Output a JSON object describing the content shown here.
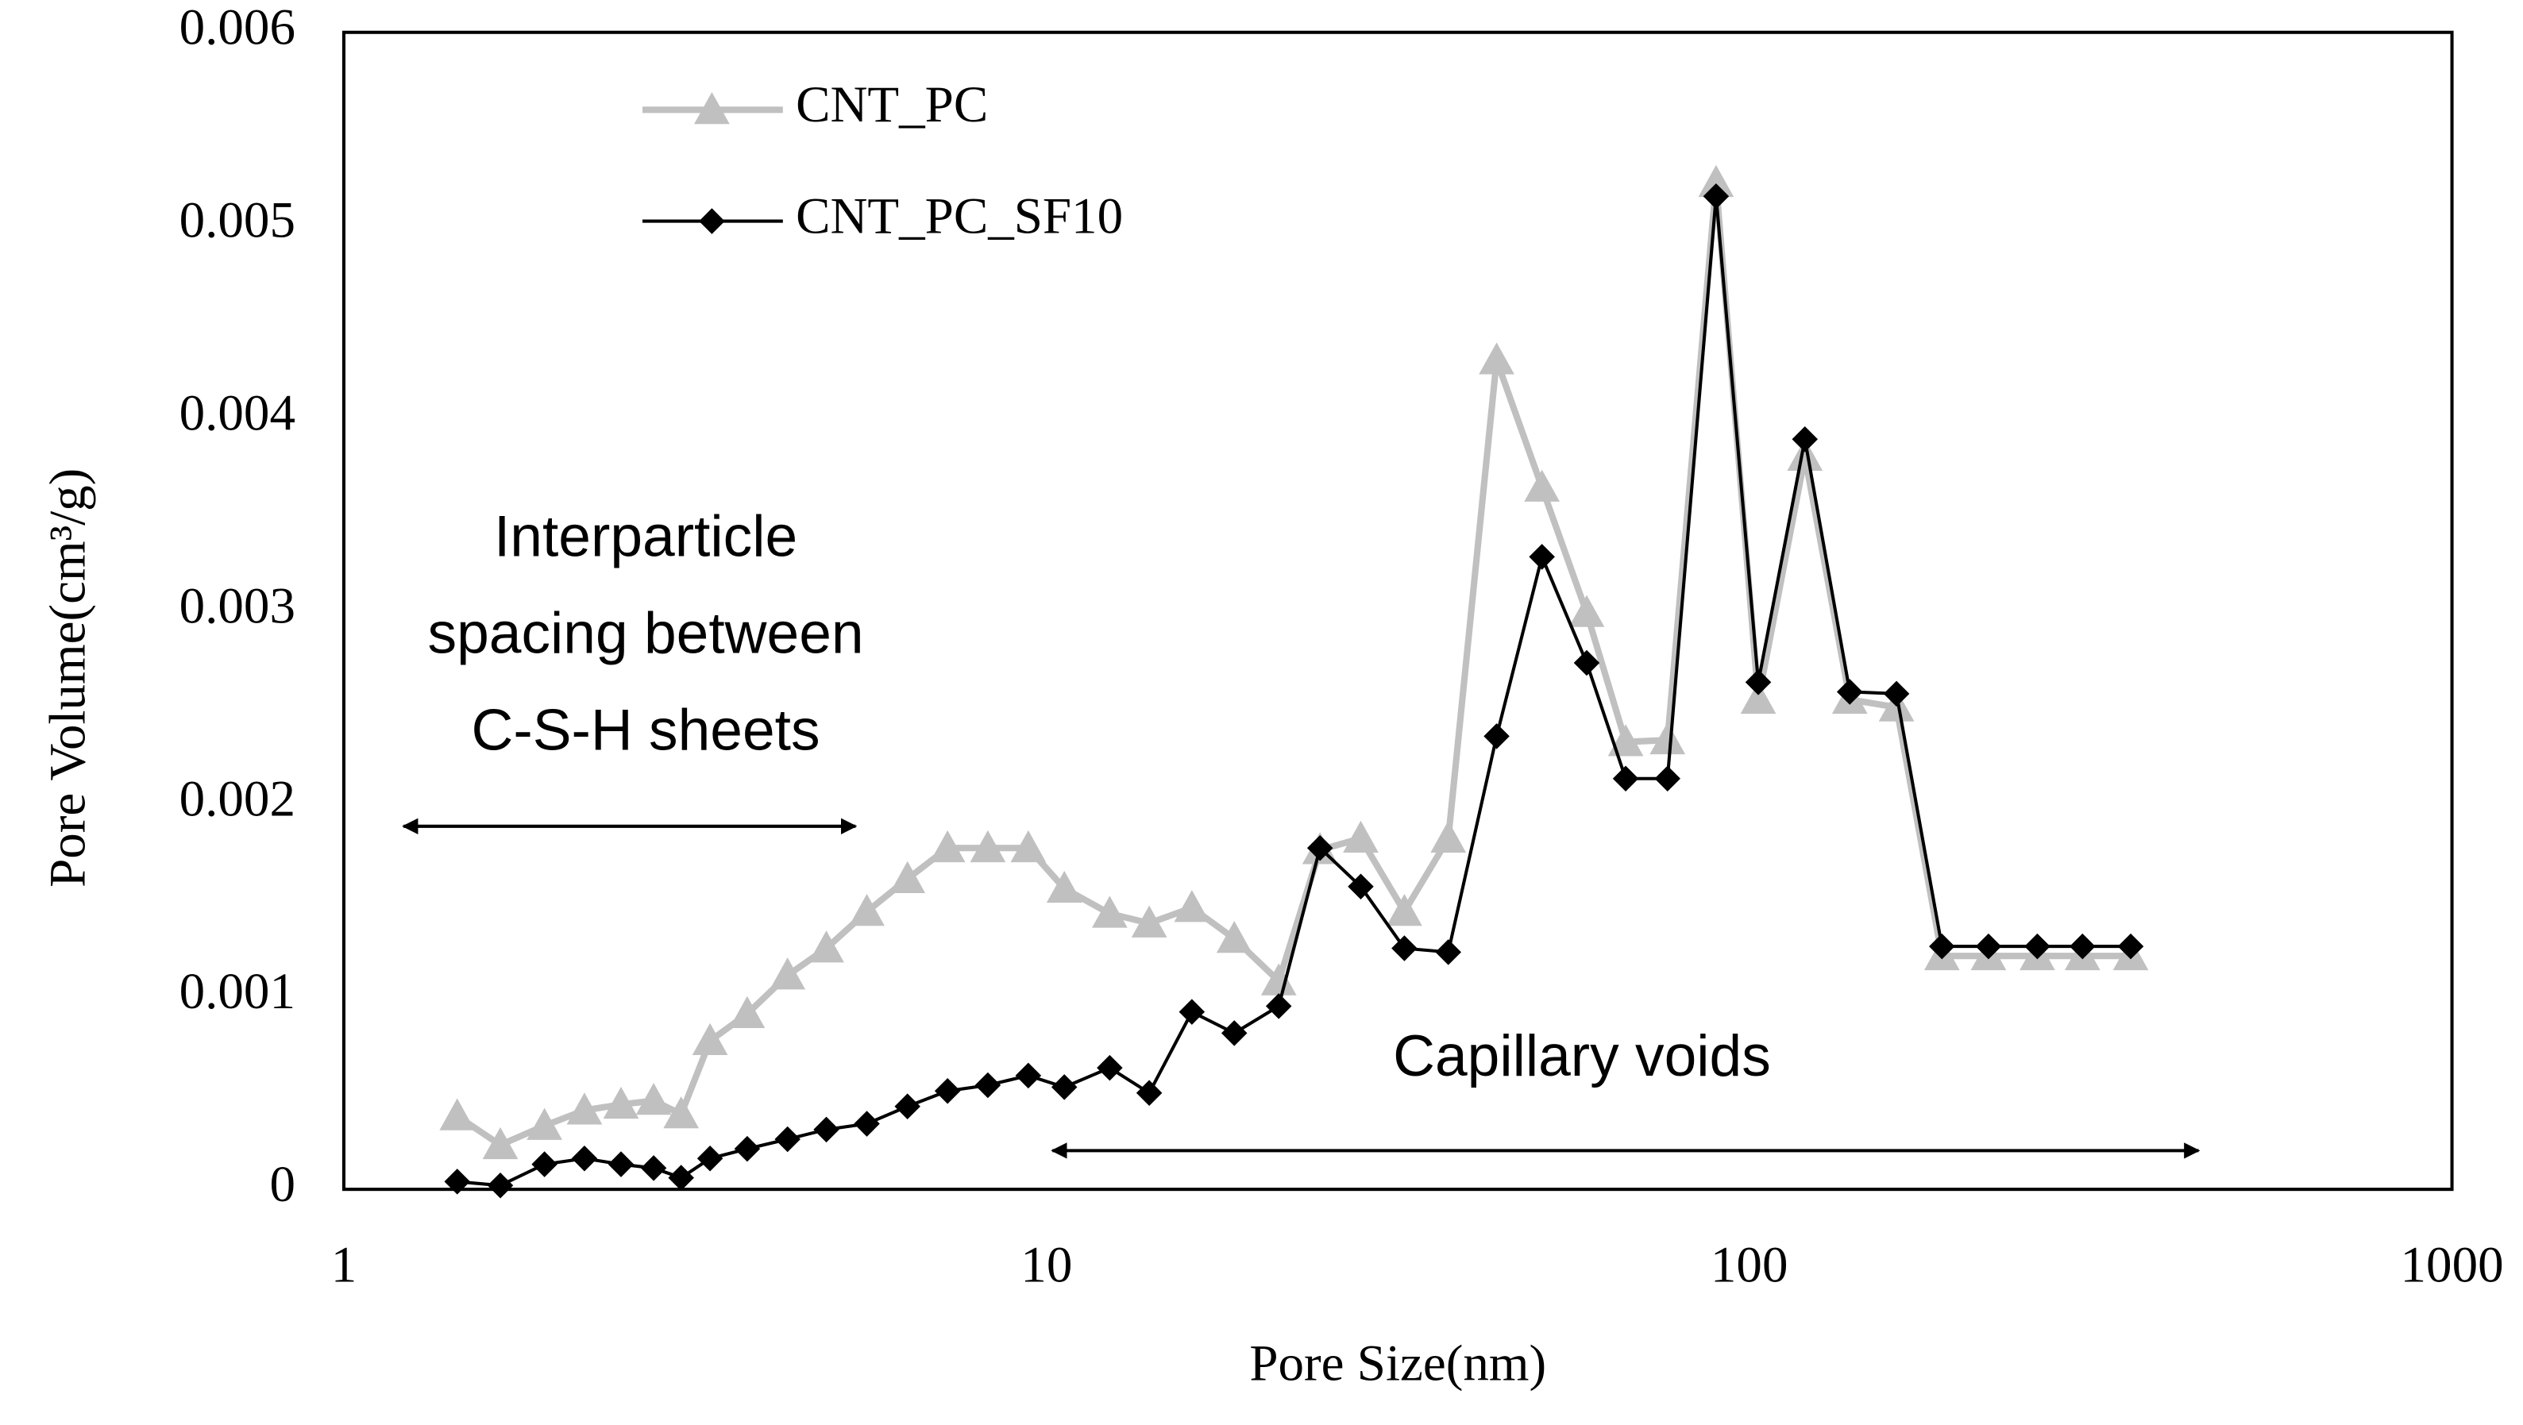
{
  "chart_data": {
    "type": "line",
    "x_label": "Pore Size(nm)",
    "y_label": "Pore Volume(cm³/g)",
    "xlim": [
      1,
      1000
    ],
    "xticks": [
      1,
      10,
      100,
      1000
    ],
    "x_log": true,
    "ylim": [
      0,
      0.006
    ],
    "yticks": [
      0,
      0.001,
      0.002,
      0.003,
      0.004,
      0.005,
      0.006
    ],
    "grid": false,
    "legend": "upper left",
    "x": [
      1.45,
      1.67,
      1.93,
      2.2,
      2.48,
      2.76,
      3.02,
      3.32,
      3.75,
      4.28,
      4.86,
      5.55,
      6.34,
      7.23,
      8.25,
      9.42,
      10.6,
      12.3,
      14.0,
      16.1,
      18.5,
      21.4,
      24.5,
      28.0,
      32.3,
      37.3,
      43.7,
      50.7,
      58.7,
      66.7,
      76.5,
      89.7,
      103,
      120,
      139,
      162,
      188,
      219,
      257,
      298,
      349
    ],
    "series": [
      {
        "name": "CNT_PC",
        "color": "#c0c0c0",
        "marker": "triangle",
        "values": [
          0.00038,
          0.00023,
          0.00033,
          0.00041,
          0.00044,
          0.00046,
          0.00039,
          0.00077,
          0.00091,
          0.00111,
          0.00125,
          0.00144,
          0.00161,
          0.00177,
          0.00177,
          0.00177,
          0.00156,
          0.00143,
          0.00138,
          0.00146,
          0.0013,
          0.00108,
          0.00176,
          0.00182,
          0.00144,
          0.00182,
          0.0043,
          0.00364,
          0.00299,
          0.00232,
          0.00233,
          0.00522,
          0.00254,
          0.0038,
          0.00254,
          0.0025,
          0.00121,
          0.00121,
          0.00121,
          0.00121,
          0.00121
        ]
      },
      {
        "name": "CNT_PC_SF10",
        "color": "#000000",
        "marker": "diamond",
        "values": [
          4e-05,
          2e-05,
          0.00013,
          0.00016,
          0.00013,
          0.00011,
          6e-05,
          0.00016,
          0.00021,
          0.00026,
          0.00031,
          0.00034,
          0.00043,
          0.00051,
          0.00054,
          0.00059,
          0.00053,
          0.00063,
          0.0005,
          0.00092,
          0.00081,
          0.00095,
          0.00177,
          0.00157,
          0.00125,
          0.00123,
          0.00235,
          0.00328,
          0.00273,
          0.00213,
          0.00213,
          0.00515,
          0.00263,
          0.00389,
          0.00258,
          0.00257,
          0.00126,
          0.00126,
          0.00126,
          0.00126,
          0.00126
        ]
      }
    ],
    "annotations": [
      {
        "text": [
          "Interparticle",
          "spacing between",
          "C-S-H sheets"
        ]
      },
      {
        "text": [
          "Capillary voids"
        ]
      }
    ]
  }
}
